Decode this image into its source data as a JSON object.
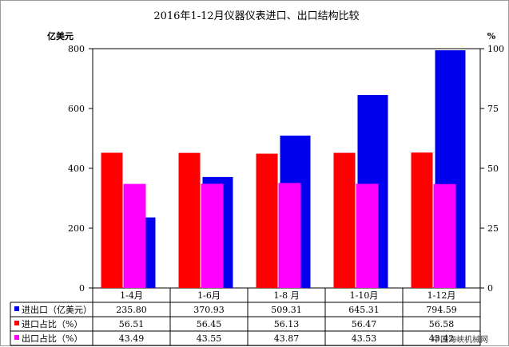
{
  "chart_data": {
    "type": "bar",
    "title": "2016年1-12月仪器仪表进口、出口结构比较",
    "ylabel_left": "亿美元",
    "ylabel_right": "%",
    "ylim_left": [
      0,
      800
    ],
    "ylim_right": [
      0,
      100
    ],
    "yticks_left": [
      "0",
      "200",
      "400",
      "600",
      "800"
    ],
    "yticks_right": [
      "0",
      "25",
      "50",
      "75",
      "100"
    ],
    "categories": [
      "1-4月",
      "1-6月",
      "1-8 月",
      "1-10月",
      "1-12月"
    ],
    "series": [
      {
        "name": "进出口（亿美元）",
        "axis": "left",
        "color": "#0000ee",
        "values": [
          235.8,
          370.93,
          509.31,
          645.31,
          794.59
        ],
        "labels": [
          "235.80",
          "370.93",
          "509.31",
          "645.31",
          "794.59"
        ]
      },
      {
        "name": "进口占比（%）",
        "axis": "right",
        "color": "#ff0000",
        "values": [
          56.51,
          56.45,
          56.13,
          56.47,
          56.58
        ],
        "labels": [
          "56.51",
          "56.45",
          "56.13",
          "56.47",
          "56.58"
        ]
      },
      {
        "name": "出口占比（%）",
        "axis": "right",
        "color": "#ff00ff",
        "values": [
          43.49,
          43.55,
          43.87,
          43.53,
          43.42
        ],
        "labels": [
          "43.49",
          "43.55",
          "43.87",
          "43.53",
          "43.42"
        ]
      }
    ],
    "legend_placement": "data table below plot",
    "grid": false
  },
  "watermark": "中国海峡机械网"
}
